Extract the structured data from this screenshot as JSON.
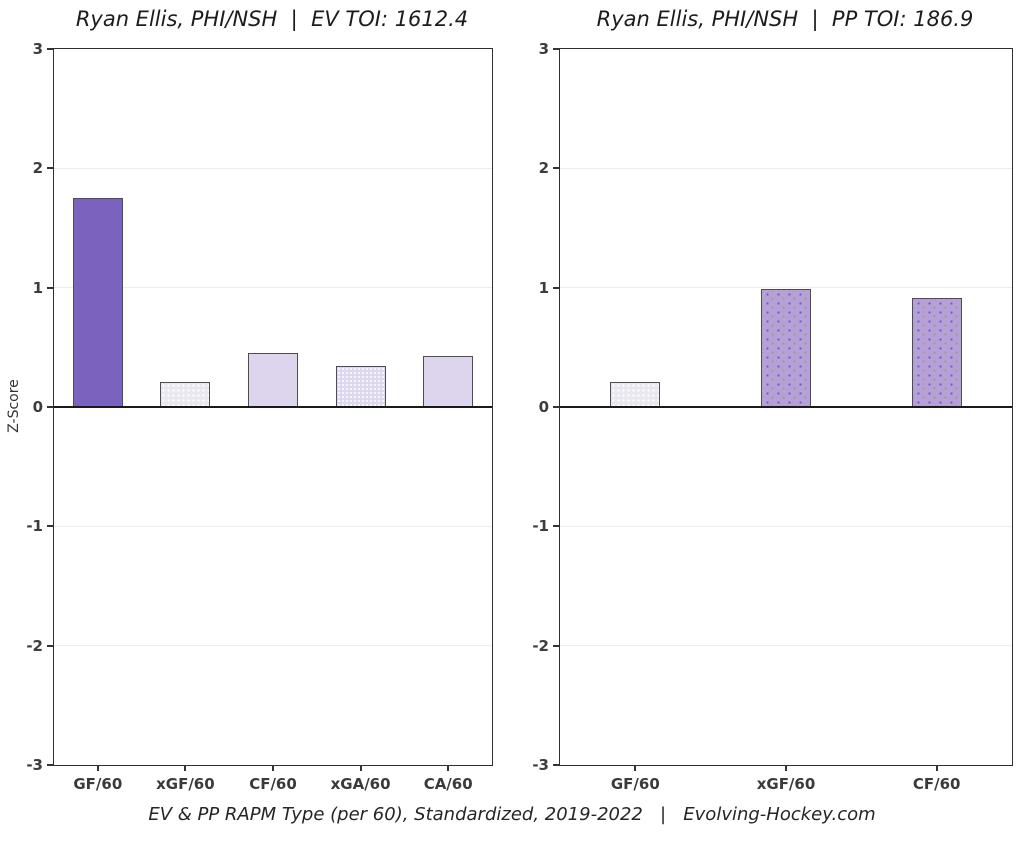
{
  "figure": {
    "caption": "EV & PP RAPM Type (per 60), Standardized, 2019-2022   |   Evolving-Hockey.com",
    "y_axis_title": "Z-Score"
  },
  "colors": {
    "bar_solid_purple": "#7a63be",
    "bar_light_lavender": "#ddd4ee",
    "bar_lavender_dotted": "#ded7ee",
    "bar_faint": "#e9e7ef",
    "bar_medium_purple": "#b5a1d8",
    "bar_border": "#4d4d4d",
    "axis_text": "#3d3d3d",
    "zero_line": "#1a1a1a",
    "gridline": "#ececec",
    "background": "#ffffff"
  },
  "chart_data": [
    {
      "type": "bar",
      "title": "Ryan Ellis, PHI/NSH  |  EV TOI: 1612.4",
      "categories": [
        "GF/60",
        "xGF/60",
        "CF/60",
        "xGA/60",
        "CA/60"
      ],
      "values": [
        1.75,
        0.21,
        0.45,
        0.34,
        0.43
      ],
      "bar_styles": [
        "solid-purple",
        "faint-dotted",
        "light-solid",
        "light-dotted",
        "light-solid"
      ],
      "xlabel": "",
      "ylabel": "Z-Score",
      "ylim": [
        -3,
        3
      ],
      "yticks": [
        3,
        2,
        1,
        0,
        -1,
        -2,
        -3
      ],
      "grid": "horizontal-major",
      "zero_line": true,
      "legend": "none"
    },
    {
      "type": "bar",
      "title": "Ryan Ellis, PHI/NSH  |  PP TOI: 186.9",
      "categories": [
        "GF/60",
        "xGF/60",
        "CF/60"
      ],
      "values": [
        0.21,
        0.99,
        0.91
      ],
      "bar_styles": [
        "faint-dotted",
        "medium-dotted",
        "medium-dotted"
      ],
      "xlabel": "",
      "ylabel": "Z-Score",
      "ylim": [
        -3,
        3
      ],
      "yticks": [
        3,
        2,
        1,
        0,
        -1,
        -2,
        -3
      ],
      "grid": "horizontal-major",
      "zero_line": true,
      "legend": "none"
    }
  ]
}
